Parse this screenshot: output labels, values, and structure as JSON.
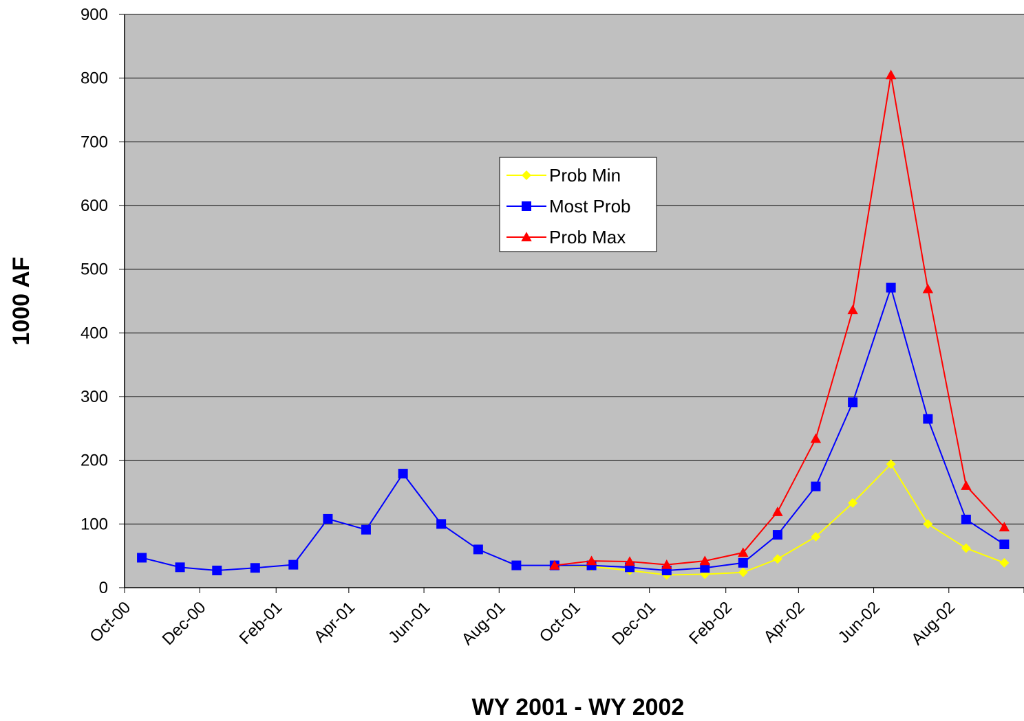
{
  "chart_data": {
    "type": "line",
    "title": "",
    "xlabel": "WY 2001 - WY 2002",
    "ylabel": "1000 AF",
    "ylim": [
      0,
      900
    ],
    "yticks": [
      "0",
      "100",
      "200",
      "300",
      "400",
      "500",
      "600",
      "700",
      "800",
      "900"
    ],
    "xlim": [
      "2000-10-01",
      "2002-10-01"
    ],
    "xticks": [
      {
        "date": "2000-10-01",
        "label": "Oct-00"
      },
      {
        "date": "2000-12-01",
        "label": "Dec-00"
      },
      {
        "date": "2001-02-01",
        "label": "Feb-01"
      },
      {
        "date": "2001-04-01",
        "label": "Apr-01"
      },
      {
        "date": "2001-06-01",
        "label": "Jun-01"
      },
      {
        "date": "2001-08-01",
        "label": "Aug-01"
      },
      {
        "date": "2001-10-01",
        "label": "Oct-01"
      },
      {
        "date": "2001-12-01",
        "label": "Dec-01"
      },
      {
        "date": "2002-02-01",
        "label": "Feb-02"
      },
      {
        "date": "2002-04-01",
        "label": "Apr-02"
      },
      {
        "date": "2002-06-01",
        "label": "Jun-02"
      },
      {
        "date": "2002-08-01",
        "label": "Aug-02"
      },
      {
        "date": "2002-10-01",
        "label": ""
      }
    ],
    "grid": "horizontal",
    "plot_background": "#c0c0c0",
    "legend_placement": "upper-center",
    "series": [
      {
        "name": "Prob Min",
        "color": "#ffff00",
        "marker": "diamond",
        "x": [
          "2001-09-15",
          "2001-10-15",
          "2001-11-15",
          "2001-12-15",
          "2002-01-15",
          "2002-02-15",
          "2002-03-15",
          "2002-04-15",
          "2002-05-15",
          "2002-06-15",
          "2002-07-15",
          "2002-08-15",
          "2002-09-15"
        ],
        "y": [
          35,
          33,
          27,
          20,
          21,
          24,
          45,
          80,
          133,
          194,
          100,
          62,
          39
        ]
      },
      {
        "name": "Most Prob",
        "color": "#0000ff",
        "marker": "square",
        "x": [
          "2000-10-15",
          "2000-11-15",
          "2000-12-15",
          "2001-01-15",
          "2001-02-15",
          "2001-03-15",
          "2001-04-15",
          "2001-05-15",
          "2001-06-15",
          "2001-07-15",
          "2001-08-15",
          "2001-09-15",
          "2001-10-15",
          "2001-11-15",
          "2001-12-15",
          "2002-01-15",
          "2002-02-15",
          "2002-03-15",
          "2002-04-15",
          "2002-05-15",
          "2002-06-15",
          "2002-07-15",
          "2002-08-15",
          "2002-09-15"
        ],
        "y": [
          47,
          32,
          27,
          31,
          36,
          108,
          91,
          179,
          100,
          60,
          35,
          35,
          35,
          32,
          27,
          31,
          39,
          83,
          159,
          291,
          471,
          265,
          107,
          68
        ]
      },
      {
        "name": "Prob Max",
        "color": "#ff0000",
        "marker": "triangle",
        "x": [
          "2001-09-15",
          "2001-10-15",
          "2001-11-15",
          "2001-12-15",
          "2002-01-15",
          "2002-02-15",
          "2002-03-15",
          "2002-04-15",
          "2002-05-15",
          "2002-06-15",
          "2002-07-15",
          "2002-08-15",
          "2002-09-15"
        ],
        "y": [
          35,
          42,
          41,
          36,
          42,
          55,
          119,
          234,
          436,
          805,
          469,
          160,
          95
        ]
      }
    ]
  }
}
